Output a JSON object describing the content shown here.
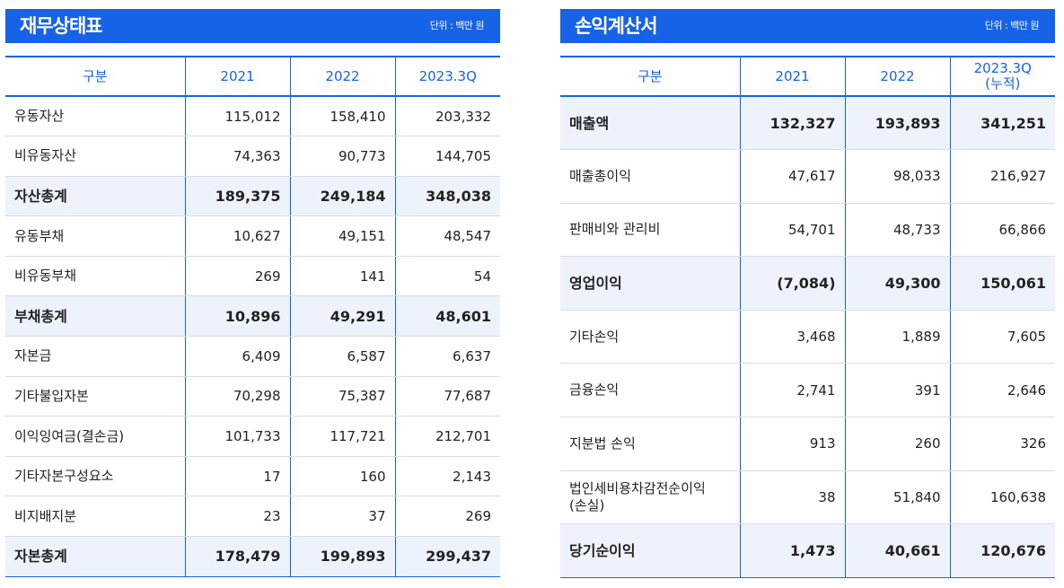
{
  "balance_sheet": {
    "title": "재무상태표",
    "unit": "단위 : 백만 원",
    "headers": [
      "구분",
      "2021",
      "2022",
      "2023.3Q"
    ],
    "rows": [
      {
        "label": "유동자산",
        "v": [
          "115,012",
          "158,410",
          "203,332"
        ],
        "bold": false
      },
      {
        "label": "비유동자산",
        "v": [
          "74,363",
          "90,773",
          "144,705"
        ],
        "bold": false
      },
      {
        "label": "자산총계",
        "v": [
          "189,375",
          "249,184",
          "348,038"
        ],
        "bold": true
      },
      {
        "label": "유동부채",
        "v": [
          "10,627",
          "49,151",
          "48,547"
        ],
        "bold": false
      },
      {
        "label": "비유동부채",
        "v": [
          "269",
          "141",
          "54"
        ],
        "bold": false
      },
      {
        "label": "부채총계",
        "v": [
          "10,896",
          "49,291",
          "48,601"
        ],
        "bold": true
      },
      {
        "label": "자본금",
        "v": [
          "6,409",
          "6,587",
          "6,637"
        ],
        "bold": false
      },
      {
        "label": "기타불입자본",
        "v": [
          "70,298",
          "75,387",
          "77,687"
        ],
        "bold": false
      },
      {
        "label": "이익잉여금(결손금)",
        "v": [
          "101,733",
          "117,721",
          "212,701"
        ],
        "bold": false
      },
      {
        "label": "기타자본구성요소",
        "v": [
          "17",
          "160",
          "2,143"
        ],
        "bold": false
      },
      {
        "label": "비지배지분",
        "v": [
          "23",
          "37",
          "269"
        ],
        "bold": false
      },
      {
        "label": "자본총계",
        "v": [
          "178,479",
          "199,893",
          "299,437"
        ],
        "bold": true
      }
    ]
  },
  "income_statement": {
    "title": "손익계산서",
    "unit": "단위 : 백만 원",
    "headers": [
      "구분",
      "2021",
      "2022",
      "2023.3Q\n(누적)"
    ],
    "rows": [
      {
        "label": "매출액",
        "v": [
          "132,327",
          "193,893",
          "341,251"
        ],
        "bold": true
      },
      {
        "label": "매출총이익",
        "v": [
          "47,617",
          "98,033",
          "216,927"
        ],
        "bold": false
      },
      {
        "label": "판매비와 관리비",
        "v": [
          "54,701",
          "48,733",
          "66,866"
        ],
        "bold": false
      },
      {
        "label": "영업이익",
        "v": [
          "(7,084)",
          "49,300",
          "150,061"
        ],
        "bold": true
      },
      {
        "label": "기타손익",
        "v": [
          "3,468",
          "1,889",
          "7,605"
        ],
        "bold": false
      },
      {
        "label": "금융손익",
        "v": [
          "2,741",
          "391",
          "2,646"
        ],
        "bold": false
      },
      {
        "label": "지분법 손익",
        "v": [
          "913",
          "260",
          "326"
        ],
        "bold": false
      },
      {
        "label": "법인세비용차감전순이익\n(손실)",
        "v": [
          "38",
          "51,840",
          "160,638"
        ],
        "bold": false
      },
      {
        "label": "당기순이익",
        "v": [
          "1,473",
          "40,661",
          "120,676"
        ],
        "bold": true
      }
    ]
  }
}
